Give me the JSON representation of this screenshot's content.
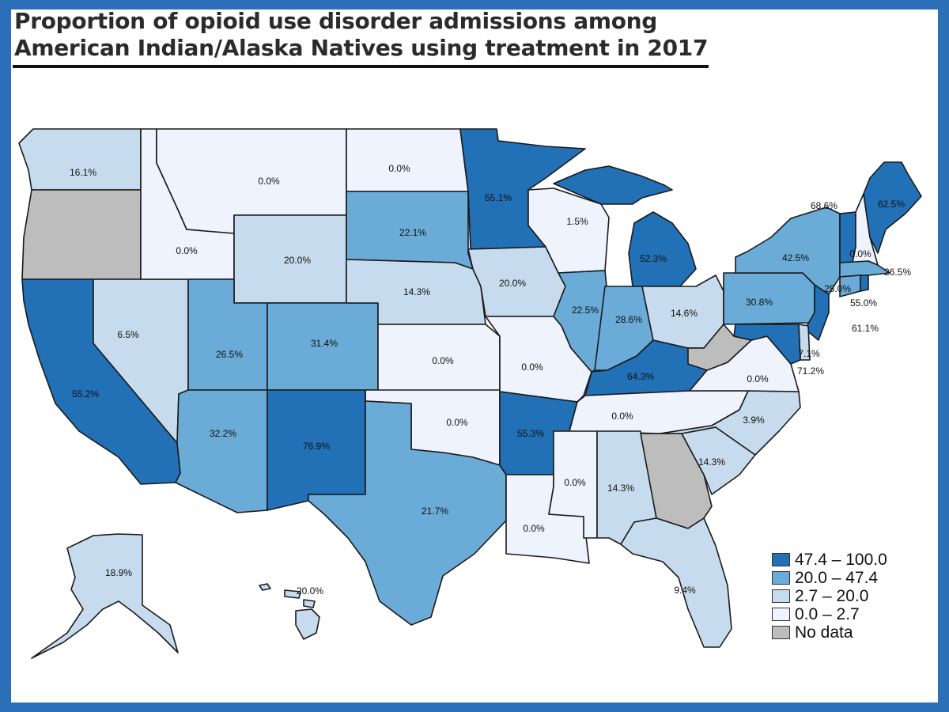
{
  "title_line1": "Proportion of opioid use disorder admissions among",
  "title_line2": "American Indian/Alaska Natives using treatment in 2017",
  "colors": {
    "c1": "#2270b6",
    "c2": "#6aabd7",
    "c3": "#c7dbee",
    "c4": "#eef3fd",
    "nodata": "#bdbdbd",
    "stroke": "#1a1a1a",
    "frame": "#2a6fb8"
  },
  "legend": [
    {
      "label": "47.4 – 100.0",
      "color": "c1"
    },
    {
      "label": "20.0 – 47.4",
      "color": "c2"
    },
    {
      "label": "2.7 – 20.0",
      "color": "c3"
    },
    {
      "label": "0.0 – 2.7",
      "color": "c4"
    },
    {
      "label": "No data",
      "color": "nodata"
    }
  ],
  "states": [
    {
      "id": "WA",
      "value": "16.1%",
      "class": "c3"
    },
    {
      "id": "OR",
      "value": null,
      "class": "nodata"
    },
    {
      "id": "CA",
      "value": "55.2%",
      "class": "c1"
    },
    {
      "id": "NV",
      "value": "6.5%",
      "class": "c3"
    },
    {
      "id": "ID",
      "value": "0.0%",
      "class": "c4"
    },
    {
      "id": "MT",
      "value": "0.0%",
      "class": "c4"
    },
    {
      "id": "WY",
      "value": "20.0%",
      "class": "c3"
    },
    {
      "id": "UT",
      "value": "26.5%",
      "class": "c2"
    },
    {
      "id": "CO",
      "value": "31.4%",
      "class": "c2"
    },
    {
      "id": "AZ",
      "value": "32.2%",
      "class": "c2"
    },
    {
      "id": "NM",
      "value": "76.9%",
      "class": "c1"
    },
    {
      "id": "ND",
      "value": "0.0%",
      "class": "c4"
    },
    {
      "id": "SD",
      "value": "22.1%",
      "class": "c2"
    },
    {
      "id": "NE",
      "value": "14.3%",
      "class": "c3"
    },
    {
      "id": "KS",
      "value": "0.0%",
      "class": "c4"
    },
    {
      "id": "OK",
      "value": "0.0%",
      "class": "c4"
    },
    {
      "id": "TX",
      "value": "21.7%",
      "class": "c2"
    },
    {
      "id": "MN",
      "value": "55.1%",
      "class": "c1"
    },
    {
      "id": "IA",
      "value": "20.0%",
      "class": "c3"
    },
    {
      "id": "MO",
      "value": "0.0%",
      "class": "c4"
    },
    {
      "id": "AR",
      "value": "55.3%",
      "class": "c1"
    },
    {
      "id": "LA",
      "value": "0.0%",
      "class": "c4"
    },
    {
      "id": "WI",
      "value": "1.5%",
      "class": "c4"
    },
    {
      "id": "IL",
      "value": "22.5%",
      "class": "c2"
    },
    {
      "id": "MI",
      "value": "52.3%",
      "class": "c1"
    },
    {
      "id": "IN",
      "value": "28.6%",
      "class": "c2"
    },
    {
      "id": "OH",
      "value": "14.6%",
      "class": "c3"
    },
    {
      "id": "KY",
      "value": "64.3%",
      "class": "c1"
    },
    {
      "id": "TN",
      "value": "0.0%",
      "class": "c4"
    },
    {
      "id": "MS",
      "value": "0.0%",
      "class": "c4"
    },
    {
      "id": "AL",
      "value": "14.3%",
      "class": "c3"
    },
    {
      "id": "GA",
      "value": null,
      "class": "nodata"
    },
    {
      "id": "FL",
      "value": "9.4%",
      "class": "c3"
    },
    {
      "id": "SC",
      "value": "14.3%",
      "class": "c3"
    },
    {
      "id": "NC",
      "value": "3.9%",
      "class": "c3"
    },
    {
      "id": "VA",
      "value": "0.0%",
      "class": "c4"
    },
    {
      "id": "WV",
      "value": null,
      "class": "nodata"
    },
    {
      "id": "PA",
      "value": "30.8%",
      "class": "c2"
    },
    {
      "id": "NY",
      "value": "42.5%",
      "class": "c2"
    },
    {
      "id": "VT",
      "value": "68.6%",
      "class": "c1"
    },
    {
      "id": "NH",
      "value": "0.0%",
      "class": "c4"
    },
    {
      "id": "ME",
      "value": "62.5%",
      "class": "c1"
    },
    {
      "id": "MA",
      "value": "26.5%",
      "class": "c2"
    },
    {
      "id": "CT",
      "value": "25.0%",
      "class": "c2"
    },
    {
      "id": "RI",
      "value": "55.0%",
      "class": "c1"
    },
    {
      "id": "NJ",
      "value": "61.1%",
      "class": "c1"
    },
    {
      "id": "DE",
      "value": "7.1%",
      "class": "c3"
    },
    {
      "id": "MD",
      "value": "71.2%",
      "class": "c1"
    },
    {
      "id": "AK",
      "value": "18.9%",
      "class": "c3"
    },
    {
      "id": "HI",
      "value": "20.0%",
      "class": "c3"
    }
  ]
}
